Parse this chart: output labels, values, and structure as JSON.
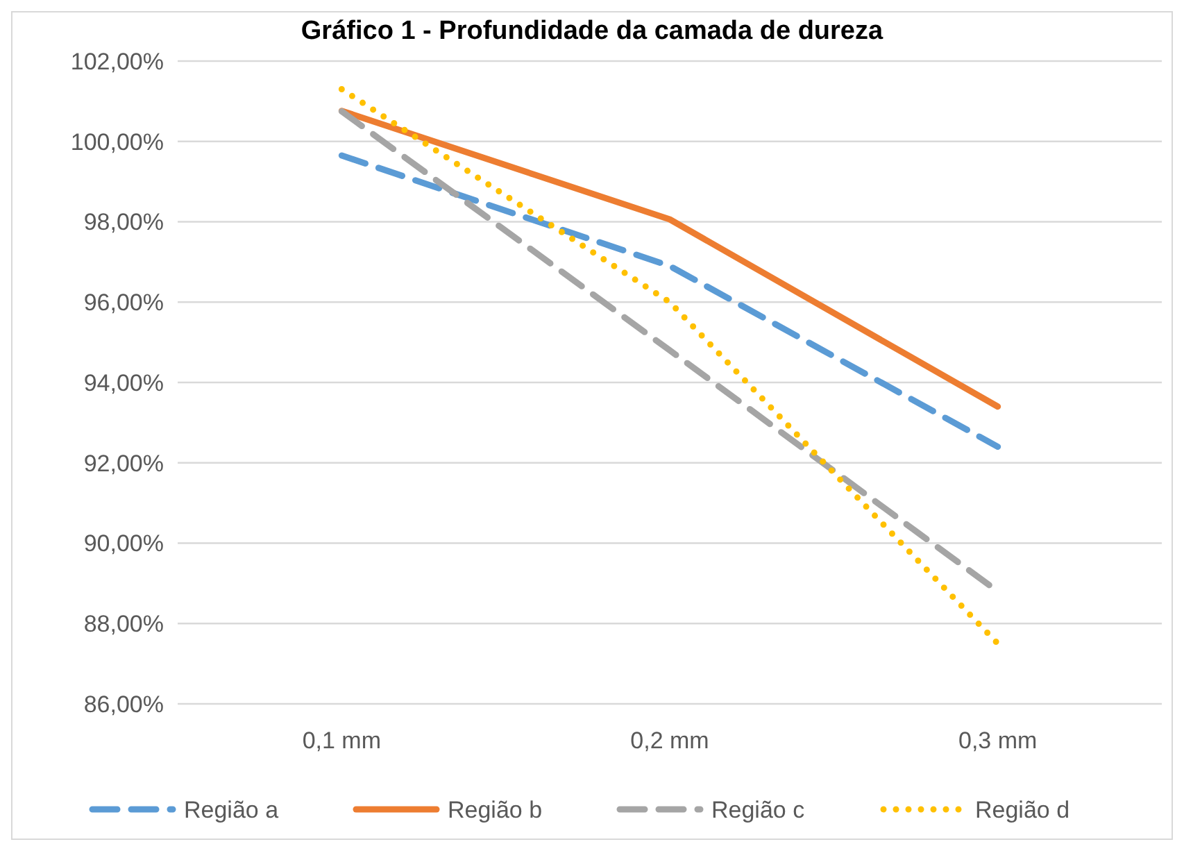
{
  "chart_data": {
    "type": "line",
    "title": "Gráfico 1 - Profundidade da camada de dureza",
    "categories": [
      "0,1 mm",
      "0,2 mm",
      "0,3 mm"
    ],
    "series": [
      {
        "name": "Região a",
        "color": "#5b9bd5",
        "line_style": "dashed",
        "values": [
          99.65,
          96.9,
          92.4
        ]
      },
      {
        "name": "Região b",
        "color": "#ed7d31",
        "line_style": "solid",
        "values": [
          100.76,
          98.06,
          93.4
        ]
      },
      {
        "name": "Região c",
        "color": "#a5a5a5",
        "line_style": "dashed",
        "values": [
          100.75,
          94.8,
          88.8
        ]
      },
      {
        "name": "Região d",
        "color": "#ffc000",
        "line_style": "dotted",
        "values": [
          101.3,
          96.0,
          87.5
        ]
      }
    ],
    "ylim": [
      86,
      102
    ],
    "yticks": [
      {
        "value": 86,
        "label": "86,00%"
      },
      {
        "value": 88,
        "label": "88,00%"
      },
      {
        "value": 90,
        "label": "90,00%"
      },
      {
        "value": 92,
        "label": "92,00%"
      },
      {
        "value": 94,
        "label": "94,00%"
      },
      {
        "value": 96,
        "label": "96,00%"
      },
      {
        "value": 98,
        "label": "98,00%"
      },
      {
        "value": 100,
        "label": "100,00%"
      },
      {
        "value": 102,
        "label": "102,00%"
      }
    ],
    "grid": "y",
    "legend": "bottom",
    "marker": "none"
  }
}
